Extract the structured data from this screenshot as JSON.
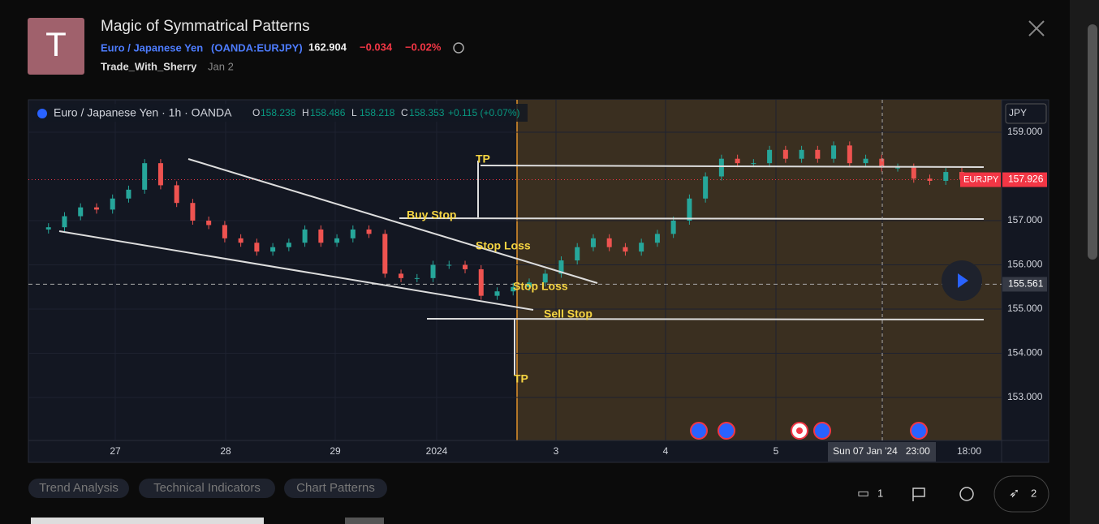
{
  "header": {
    "avatar": "T",
    "title": "Magic of Symmatrical Patterns",
    "symbol_name": "Euro / Japanese Yen",
    "symbol_code": "(OANDA:EURJPY)",
    "price": "162.904",
    "change": "−0.034",
    "change_pct": "−0.02%",
    "author": "Trade_With_Sherry",
    "date": "Jan 2"
  },
  "chart": {
    "legend_title": "Euro / Japanese Yen · 1h · OANDA",
    "ohlc": [
      {
        "key": "O",
        "value": "158.238"
      },
      {
        "key": "H",
        "value": "158.486"
      },
      {
        "key": "L",
        "value": "158.218"
      },
      {
        "key": "C",
        "value": "158.353"
      }
    ],
    "legend_change": "+0.115 (+0.07%)",
    "currency": "JPY",
    "price_ticks": [
      {
        "value": 159,
        "label": "159.000"
      },
      {
        "value": 157,
        "label": "157.000"
      },
      {
        "value": 156,
        "label": "156.000"
      },
      {
        "value": 155,
        "label": "155.000"
      },
      {
        "value": 154,
        "label": "154.000"
      },
      {
        "value": 153,
        "label": "153.000"
      }
    ],
    "symbol_badge": "EURJPY",
    "last_price": 157.926,
    "cursor_price": 155.561,
    "time_labels": [
      "27",
      "28",
      "29",
      "2024",
      "3",
      "4",
      "5",
      "18:00"
    ],
    "cursor_time": "Sun 07 Jan '24   23:00",
    "closes": [
      156.8,
      156.85,
      157.1,
      157.3,
      157.25,
      157.5,
      157.7,
      158.3,
      157.8,
      157.4,
      157.0,
      156.9,
      156.6,
      156.5,
      156.3,
      156.4,
      156.5,
      156.8,
      156.5,
      156.6,
      156.8,
      156.7,
      155.8,
      155.7,
      155.7,
      156.0,
      156.0,
      155.9,
      155.3,
      155.4,
      155.5,
      155.6,
      155.8,
      156.1,
      156.4,
      156.6,
      156.4,
      156.3,
      156.5,
      156.7,
      157.0,
      157.5,
      158.0,
      158.4,
      158.3,
      158.3,
      158.6,
      158.4,
      158.6,
      158.4,
      158.7,
      158.3,
      158.4,
      158.2,
      158.2,
      157.95,
      157.9,
      158.1,
      157.926
    ],
    "annotations": [
      "TP",
      "Buy Stop",
      "Stop Loss",
      "Stop Loss",
      "Sell Stop",
      "TP"
    ]
  },
  "tags": [
    "Trend Analysis",
    "Technical Indicators",
    "Chart Patterns"
  ],
  "footer": {
    "comments": "1",
    "boosts": "2"
  }
}
